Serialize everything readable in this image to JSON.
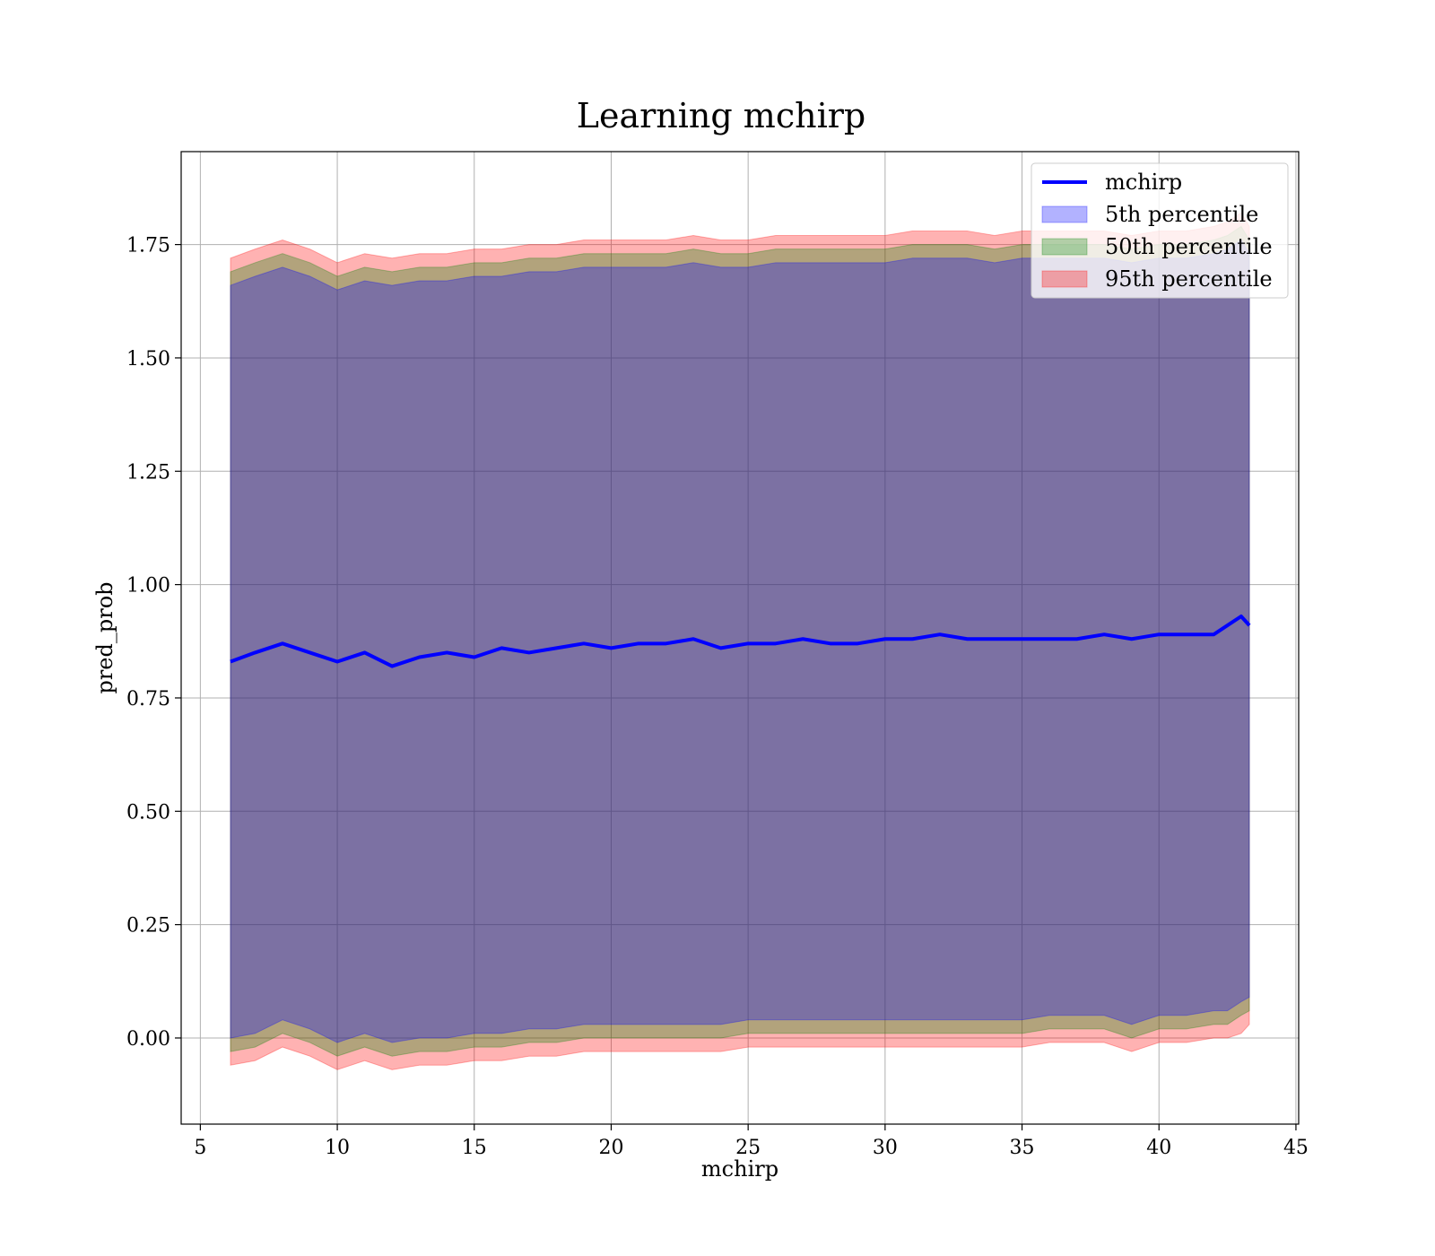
{
  "chart_data": {
    "type": "line",
    "title": "Learning mchirp",
    "xlabel": "mchirp",
    "ylabel": "pred_prob",
    "xlim": [
      4.3,
      45.1
    ],
    "ylim": [
      -0.19,
      1.955
    ],
    "xticks": [
      5,
      10,
      15,
      20,
      25,
      30,
      35,
      40,
      45
    ],
    "xtick_labels": [
      "5",
      "10",
      "15",
      "20",
      "25",
      "30",
      "35",
      "40",
      "45"
    ],
    "yticks": [
      0.0,
      0.25,
      0.5,
      0.75,
      1.0,
      1.25,
      1.5,
      1.75
    ],
    "ytick_labels": [
      "0.00",
      "0.25",
      "0.50",
      "0.75",
      "1.00",
      "1.25",
      "1.50",
      "1.75"
    ],
    "grid": true,
    "legend_position": "top-right",
    "legend": [
      {
        "label": "mchirp",
        "kind": "line",
        "color": "#0000ff"
      },
      {
        "label": "5th percentile",
        "kind": "patch",
        "color": "#0000ff"
      },
      {
        "label": "50th percentile",
        "kind": "patch",
        "color": "#008000"
      },
      {
        "label": "95th percentile",
        "kind": "patch",
        "color": "#ff0000"
      }
    ],
    "x": [
      6.1,
      7,
      8,
      9,
      10,
      11,
      12,
      13,
      14,
      15,
      16,
      17,
      18,
      19,
      20,
      21,
      22,
      23,
      24,
      25,
      26,
      27,
      28,
      29,
      30,
      31,
      32,
      33,
      34,
      35,
      36,
      37,
      38,
      39,
      40,
      41,
      42,
      42.5,
      43,
      43.3
    ],
    "series": [
      {
        "name": "mchirp",
        "color": "#0000ff",
        "values": [
          0.83,
          0.85,
          0.87,
          0.85,
          0.83,
          0.85,
          0.82,
          0.84,
          0.85,
          0.84,
          0.86,
          0.85,
          0.86,
          0.87,
          0.86,
          0.87,
          0.87,
          0.88,
          0.86,
          0.87,
          0.87,
          0.88,
          0.87,
          0.87,
          0.88,
          0.88,
          0.89,
          0.88,
          0.88,
          0.88,
          0.88,
          0.88,
          0.89,
          0.88,
          0.89,
          0.89,
          0.89,
          0.91,
          0.93,
          0.91
        ]
      }
    ],
    "bands": [
      {
        "name": "95th percentile",
        "color": "#ff0000",
        "lower": [
          -0.06,
          -0.05,
          -0.02,
          -0.04,
          -0.07,
          -0.05,
          -0.07,
          -0.06,
          -0.06,
          -0.05,
          -0.05,
          -0.04,
          -0.04,
          -0.03,
          -0.03,
          -0.03,
          -0.03,
          -0.03,
          -0.03,
          -0.02,
          -0.02,
          -0.02,
          -0.02,
          -0.02,
          -0.02,
          -0.02,
          -0.02,
          -0.02,
          -0.02,
          -0.02,
          -0.01,
          -0.01,
          -0.01,
          -0.03,
          -0.01,
          -0.01,
          0.0,
          0.0,
          0.01,
          0.03
        ],
        "upper": [
          1.72,
          1.74,
          1.76,
          1.74,
          1.71,
          1.73,
          1.72,
          1.73,
          1.73,
          1.74,
          1.74,
          1.75,
          1.75,
          1.76,
          1.76,
          1.76,
          1.76,
          1.77,
          1.76,
          1.76,
          1.77,
          1.77,
          1.77,
          1.77,
          1.77,
          1.78,
          1.78,
          1.78,
          1.77,
          1.78,
          1.78,
          1.78,
          1.78,
          1.77,
          1.78,
          1.78,
          1.79,
          1.8,
          1.82,
          1.79
        ]
      },
      {
        "name": "50th percentile",
        "color": "#008000",
        "lower": [
          -0.03,
          -0.02,
          0.01,
          -0.01,
          -0.04,
          -0.02,
          -0.04,
          -0.03,
          -0.03,
          -0.02,
          -0.02,
          -0.01,
          -0.01,
          0.0,
          0.0,
          0.0,
          0.0,
          0.0,
          0.0,
          0.01,
          0.01,
          0.01,
          0.01,
          0.01,
          0.01,
          0.01,
          0.01,
          0.01,
          0.01,
          0.01,
          0.02,
          0.02,
          0.02,
          0.0,
          0.02,
          0.02,
          0.03,
          0.03,
          0.05,
          0.06
        ],
        "upper": [
          1.69,
          1.71,
          1.73,
          1.71,
          1.68,
          1.7,
          1.69,
          1.7,
          1.7,
          1.71,
          1.71,
          1.72,
          1.72,
          1.73,
          1.73,
          1.73,
          1.73,
          1.74,
          1.73,
          1.73,
          1.74,
          1.74,
          1.74,
          1.74,
          1.74,
          1.75,
          1.75,
          1.75,
          1.74,
          1.75,
          1.75,
          1.75,
          1.75,
          1.74,
          1.75,
          1.75,
          1.76,
          1.77,
          1.79,
          1.76
        ]
      },
      {
        "name": "5th percentile",
        "color": "#0000ff",
        "lower": [
          0.0,
          0.01,
          0.04,
          0.02,
          -0.01,
          0.01,
          -0.01,
          0.0,
          0.0,
          0.01,
          0.01,
          0.02,
          0.02,
          0.03,
          0.03,
          0.03,
          0.03,
          0.03,
          0.03,
          0.04,
          0.04,
          0.04,
          0.04,
          0.04,
          0.04,
          0.04,
          0.04,
          0.04,
          0.04,
          0.04,
          0.05,
          0.05,
          0.05,
          0.03,
          0.05,
          0.05,
          0.06,
          0.06,
          0.08,
          0.09
        ],
        "upper": [
          1.66,
          1.68,
          1.7,
          1.68,
          1.65,
          1.67,
          1.66,
          1.67,
          1.67,
          1.68,
          1.68,
          1.69,
          1.69,
          1.7,
          1.7,
          1.7,
          1.7,
          1.71,
          1.7,
          1.7,
          1.71,
          1.71,
          1.71,
          1.71,
          1.71,
          1.72,
          1.72,
          1.72,
          1.71,
          1.72,
          1.72,
          1.72,
          1.72,
          1.71,
          1.72,
          1.72,
          1.73,
          1.74,
          1.76,
          1.73
        ]
      }
    ]
  }
}
